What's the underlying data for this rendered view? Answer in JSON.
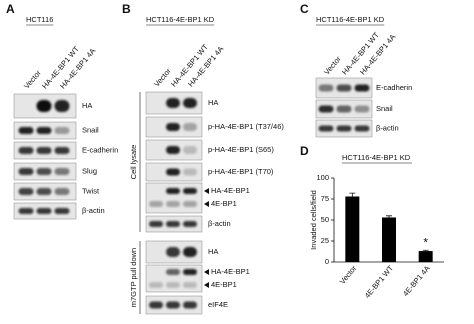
{
  "panels": {
    "A": {
      "letter": "A",
      "cell_line": "HCT116",
      "lanes": [
        "Vector",
        "HA-4E-BP1 WT",
        "HA-4E-BP1 4A"
      ],
      "blots": [
        "HA",
        "Snail",
        "E-cadherin",
        "Slug",
        "Twist",
        "β-actin"
      ]
    },
    "B": {
      "letter": "B",
      "cell_line": "HCT116-4E-BP1 KD",
      "lanes": [
        "Vector",
        "HA-4E-BP1 WT",
        "HA-4E-BP1 4A"
      ],
      "groups": [
        {
          "label": "Cell lysate",
          "blots": [
            "HA",
            "p-HA-4E-BP1 (T37/46)",
            "p-HA-4E-BP1 (S65)",
            "p-HA-4E-BP1 (T70)",
            "HA-4E-BP1",
            "4E-BP1",
            "β-actin"
          ]
        },
        {
          "label": "m7GTP pull down",
          "blots": [
            "HA",
            "HA-4E-BP1",
            "4E-BP1",
            "eIF4E"
          ]
        }
      ]
    },
    "C": {
      "letter": "C",
      "cell_line": "HCT116-4E-BP1 KD",
      "lanes": [
        "Vector",
        "HA-4E-BP1 WT",
        "HA-4E-BP1 4A"
      ],
      "blots": [
        "E-cadherin",
        "Snail",
        "β-actin"
      ]
    },
    "D": {
      "letter": "D"
    }
  },
  "chart_data": {
    "type": "bar",
    "title": "HCT116-4E-BP1 KD",
    "categories": [
      "Vector",
      "4E-BP1 WT",
      "4E-BP1 4A"
    ],
    "values": [
      78,
      53,
      13
    ],
    "errors": [
      4,
      2,
      1
    ],
    "markers": [
      null,
      null,
      "*"
    ],
    "y_label": "Invaded cells/field",
    "ylim": [
      0,
      100
    ],
    "yticks": [
      0,
      25,
      50,
      75,
      100
    ],
    "color": "#000000"
  }
}
